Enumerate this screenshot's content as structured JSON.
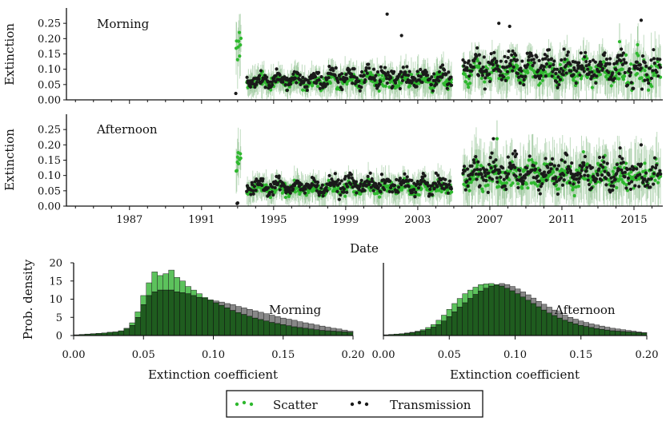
{
  "colors": {
    "scatter": "#2eb82e",
    "scatter_hist": "#5cc25c",
    "scatter_band": "#4a9a4a",
    "transmission": "#1a1a1a",
    "transmission_hist": "#888888",
    "overlap_hist": "#1f5c1f",
    "axis": "#111111"
  },
  "chart_data": [
    {
      "id": "morning_timeseries",
      "type": "scatter",
      "annotation": "Morning",
      "ylabel": "Extinction",
      "xlabel": "",
      "xlim": [
        1983.5,
        2016.6
      ],
      "ylim": [
        0.0,
        0.3
      ],
      "yticks": [
        "0.00",
        "0.05",
        "0.10",
        "0.15",
        "0.20",
        "0.25"
      ],
      "ytick_values": [
        0,
        0.05,
        0.1,
        0.15,
        0.2,
        0.25
      ],
      "xtick_values": [
        1987,
        1991,
        1995,
        1999,
        2003,
        2007,
        2011,
        2015
      ],
      "show_xticklabels": false,
      "series": [
        {
          "name": "Scatter",
          "segments": [
            {
              "start": 1992.9,
              "end": 1993.2,
              "level": 0.16,
              "spread": 0.03,
              "n": 8
            },
            {
              "start": 1993.5,
              "end": 1998.0,
              "level": 0.06,
              "spread": 0.014,
              "n": 150
            },
            {
              "start": 1998.0,
              "end": 2004.9,
              "level": 0.065,
              "spread": 0.018,
              "n": 210
            },
            {
              "start": 2005.5,
              "end": 2014.5,
              "level": 0.09,
              "spread": 0.022,
              "n": 280
            },
            {
              "start": 2014.5,
              "end": 2016.5,
              "level": 0.09,
              "spread": 0.03,
              "n": 50
            }
          ],
          "outliers": [
            [
              1993.1,
              0.22
            ],
            [
              2014.2,
              0.19
            ],
            [
              2015.2,
              0.18
            ]
          ]
        },
        {
          "name": "Transmission",
          "segments": [
            {
              "start": 1992.9,
              "end": 1993.0,
              "level": 0.02,
              "spread": 0.004,
              "n": 1
            },
            {
              "start": 1993.5,
              "end": 1998.0,
              "level": 0.065,
              "spread": 0.016,
              "n": 130
            },
            {
              "start": 1998.0,
              "end": 2004.9,
              "level": 0.075,
              "spread": 0.022,
              "n": 190
            },
            {
              "start": 2005.5,
              "end": 2014.5,
              "level": 0.11,
              "spread": 0.03,
              "n": 260
            },
            {
              "start": 2014.5,
              "end": 2016.5,
              "level": 0.1,
              "spread": 0.035,
              "n": 45
            }
          ],
          "outliers": [
            [
              2001.3,
              0.28
            ],
            [
              2007.5,
              0.25
            ],
            [
              2015.4,
              0.26
            ],
            [
              2002.1,
              0.21
            ],
            [
              2008.1,
              0.24
            ]
          ]
        }
      ]
    },
    {
      "id": "afternoon_timeseries",
      "type": "scatter",
      "annotation": "Afternoon",
      "ylabel": "Extinction",
      "xlabel": "Date",
      "xlim": [
        1983.5,
        2016.6
      ],
      "ylim": [
        0.0,
        0.3
      ],
      "yticks": [
        "0.00",
        "0.05",
        "0.10",
        "0.15",
        "0.20",
        "0.25"
      ],
      "ytick_values": [
        0,
        0.05,
        0.1,
        0.15,
        0.2,
        0.25
      ],
      "xticks": [
        "1987",
        "1991",
        "1995",
        "1999",
        "2003",
        "2007",
        "2011",
        "2015"
      ],
      "xtick_values": [
        1987,
        1991,
        1995,
        1999,
        2003,
        2007,
        2011,
        2015
      ],
      "series": [
        {
          "name": "Scatter",
          "segments": [
            {
              "start": 1992.9,
              "end": 1993.2,
              "level": 0.14,
              "spread": 0.025,
              "n": 8
            },
            {
              "start": 1993.5,
              "end": 1998.0,
              "level": 0.055,
              "spread": 0.014,
              "n": 150
            },
            {
              "start": 1998.0,
              "end": 2004.9,
              "level": 0.06,
              "spread": 0.016,
              "n": 210
            },
            {
              "start": 2005.5,
              "end": 2014.5,
              "level": 0.1,
              "spread": 0.03,
              "n": 280
            },
            {
              "start": 2014.5,
              "end": 2016.5,
              "level": 0.1,
              "spread": 0.03,
              "n": 50
            }
          ],
          "outliers": [
            [
              1993.0,
              0.16
            ],
            [
              2007.4,
              0.22
            ],
            [
              2015.6,
              0.14
            ]
          ]
        },
        {
          "name": "Transmission",
          "segments": [
            {
              "start": 1992.9,
              "end": 1993.1,
              "level": 0.01,
              "spread": 0.005,
              "n": 2
            },
            {
              "start": 1993.5,
              "end": 1998.0,
              "level": 0.065,
              "spread": 0.016,
              "n": 130
            },
            {
              "start": 1998.0,
              "end": 2004.9,
              "level": 0.07,
              "spread": 0.018,
              "n": 190
            },
            {
              "start": 2005.5,
              "end": 2014.5,
              "level": 0.11,
              "spread": 0.032,
              "n": 260
            },
            {
              "start": 2014.5,
              "end": 2016.5,
              "level": 0.1,
              "spread": 0.035,
              "n": 45
            }
          ],
          "outliers": [
            [
              2007.2,
              0.22
            ],
            [
              2015.4,
              0.2
            ],
            [
              2008.4,
              0.18
            ]
          ]
        }
      ]
    },
    {
      "id": "morning_histogram",
      "type": "bar",
      "annotation": "Morning",
      "xlabel": "Extinction coefficient",
      "ylabel": "Prob. density",
      "xlim": [
        0.0,
        0.2
      ],
      "ylim": [
        0,
        20
      ],
      "xticks": [
        "0.00",
        "0.05",
        "0.10",
        "0.15",
        "0.20"
      ],
      "xtick_values": [
        0,
        0.05,
        0.1,
        0.15,
        0.2
      ],
      "yticks": [
        "0",
        "5",
        "10",
        "15",
        "20"
      ],
      "ytick_values": [
        0,
        5,
        10,
        15,
        20
      ],
      "bin_width": 0.004,
      "series": [
        {
          "name": "Scatter",
          "values": [
            0.2,
            0.3,
            0.4,
            0.5,
            0.6,
            0.7,
            0.9,
            1.0,
            1.3,
            2.0,
            3.5,
            6.5,
            11.0,
            14.5,
            17.5,
            16.5,
            17.0,
            18.0,
            16.0,
            15.0,
            13.5,
            12.5,
            11.5,
            10.5,
            9.8,
            9.0,
            8.3,
            7.6,
            6.9,
            6.3,
            5.8,
            5.3,
            4.8,
            4.4,
            4.0,
            3.6,
            3.3,
            3.0,
            2.7,
            2.4,
            2.2,
            2.0,
            1.8,
            1.6,
            1.4,
            1.3,
            1.2,
            1.1,
            1.0,
            0.9
          ]
        },
        {
          "name": "Transmission",
          "values": [
            0.2,
            0.3,
            0.4,
            0.5,
            0.6,
            0.7,
            0.9,
            1.0,
            1.3,
            1.8,
            2.8,
            5.0,
            8.5,
            11.0,
            12.0,
            12.5,
            12.5,
            12.5,
            12.0,
            11.8,
            11.5,
            11.0,
            10.5,
            10.2,
            9.8,
            9.5,
            9.2,
            8.8,
            8.5,
            8.0,
            7.6,
            7.2,
            6.8,
            6.4,
            6.0,
            5.6,
            5.2,
            4.8,
            4.5,
            4.2,
            3.8,
            3.5,
            3.2,
            2.9,
            2.6,
            2.3,
            2.0,
            1.8,
            1.5,
            1.2
          ]
        }
      ]
    },
    {
      "id": "afternoon_histogram",
      "type": "bar",
      "annotation": "Afternoon",
      "xlabel": "Extinction coefficient",
      "ylabel": "",
      "xlim": [
        0.0,
        0.2
      ],
      "ylim": [
        0,
        20
      ],
      "xticks": [
        "0.00",
        "0.05",
        "0.10",
        "0.15",
        "0.20"
      ],
      "xtick_values": [
        0,
        0.05,
        0.1,
        0.15,
        0.2
      ],
      "bin_width": 0.004,
      "series": [
        {
          "name": "Scatter",
          "values": [
            0.2,
            0.3,
            0.4,
            0.5,
            0.7,
            0.9,
            1.2,
            1.6,
            2.2,
            3.0,
            4.2,
            5.6,
            7.2,
            8.8,
            10.2,
            11.5,
            12.5,
            13.3,
            14.0,
            14.2,
            14.3,
            14.0,
            13.6,
            13.0,
            12.3,
            11.5,
            10.6,
            9.7,
            8.8,
            7.9,
            7.0,
            6.2,
            5.5,
            4.8,
            4.2,
            3.7,
            3.2,
            2.8,
            2.5,
            2.2,
            1.9,
            1.7,
            1.5,
            1.3,
            1.2,
            1.1,
            1.0,
            0.9,
            0.8,
            0.7
          ]
        },
        {
          "name": "Transmission",
          "values": [
            0.2,
            0.3,
            0.4,
            0.5,
            0.6,
            0.8,
            1.0,
            1.3,
            1.7,
            2.3,
            3.0,
            4.0,
            5.2,
            6.5,
            7.8,
            9.0,
            10.2,
            11.3,
            12.2,
            13.0,
            13.6,
            14.0,
            14.3,
            14.0,
            13.5,
            12.8,
            12.0,
            11.2,
            10.3,
            9.4,
            8.6,
            7.8,
            7.0,
            6.3,
            5.6,
            5.0,
            4.5,
            4.0,
            3.6,
            3.2,
            2.9,
            2.6,
            2.3,
            2.0,
            1.8,
            1.6,
            1.4,
            1.2,
            1.0,
            0.8
          ]
        }
      ]
    }
  ],
  "legend": {
    "items": [
      {
        "label": "Scatter",
        "marker": "green-dots"
      },
      {
        "label": "Transmission",
        "marker": "black-dots"
      }
    ],
    "position": "bottom-center"
  }
}
